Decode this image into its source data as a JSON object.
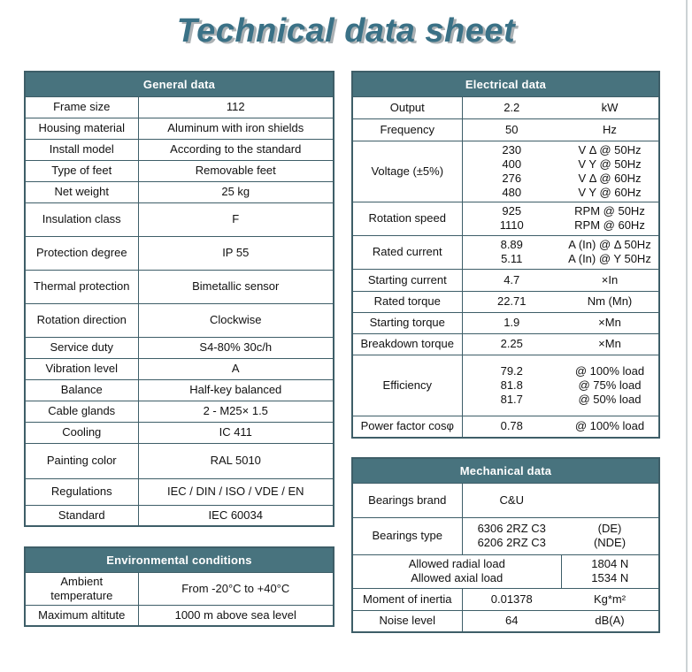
{
  "page": {
    "title": "Technical data sheet"
  },
  "colors": {
    "title_text": "#3a7186",
    "header_bg": "#48737e",
    "header_text": "#ffffff",
    "border": "#3e5e68"
  },
  "general": {
    "title": "General data",
    "rows": [
      {
        "label": "Frame size",
        "value": "112"
      },
      {
        "label": "Housing material",
        "value": "Aluminum with iron shields"
      },
      {
        "label": "Install model",
        "value": "According to the standard"
      },
      {
        "label": "Type of feet",
        "value": "Removable feet"
      },
      {
        "label": "Net weight",
        "value": "25 kg"
      },
      {
        "label": "Insulation class",
        "value": "F"
      },
      {
        "label": "Protection degree",
        "value": "IP 55"
      },
      {
        "label": "Thermal protection",
        "value": "Bimetallic sensor"
      },
      {
        "label": "Rotation direction",
        "value": "Clockwise"
      },
      {
        "label": "Service duty",
        "value": "S4-80% 30c/h"
      },
      {
        "label": "Vibration level",
        "value": "A"
      },
      {
        "label": "Balance",
        "value": "Half-key balanced"
      },
      {
        "label": "Cable glands",
        "value": "2 - M25× 1.5"
      },
      {
        "label": "Cooling",
        "value": "IC 411"
      },
      {
        "label": "Painting color",
        "value": "RAL 5010"
      },
      {
        "label": "Regulations",
        "value": "IEC / DIN / ISO / VDE / EN"
      },
      {
        "label": "Standard",
        "value": "IEC 60034"
      }
    ]
  },
  "environmental": {
    "title": "Environmental conditions",
    "rows": [
      {
        "label": "Ambient temperature",
        "value": "From -20°C to +40°C"
      },
      {
        "label": "Maximum altitute",
        "value": "1000 m above sea level"
      }
    ]
  },
  "electrical": {
    "title": "Electrical data",
    "rows": [
      {
        "label": "Output",
        "values": [
          "2.2"
        ],
        "units": [
          "kW"
        ]
      },
      {
        "label": "Frequency",
        "values": [
          "50"
        ],
        "units": [
          "Hz"
        ]
      },
      {
        "label": "Voltage (±5%)",
        "values": [
          "230",
          "400",
          "276",
          "480"
        ],
        "units": [
          "V Δ @ 50Hz",
          "V Y @ 50Hz",
          "V Δ @ 60Hz",
          "V Y @ 60Hz"
        ]
      },
      {
        "label": "Rotation speed",
        "values": [
          "925",
          "1110"
        ],
        "units": [
          "RPM @ 50Hz",
          "RPM @ 60Hz"
        ]
      },
      {
        "label": "Rated current",
        "values": [
          "8.89",
          "5.11"
        ],
        "units": [
          "A (In) @ Δ 50Hz",
          "A (In) @ Y 50Hz"
        ]
      },
      {
        "label": "Starting current",
        "values": [
          "4.7"
        ],
        "units": [
          "×In"
        ]
      },
      {
        "label": "Rated torque",
        "values": [
          "22.71"
        ],
        "units": [
          "Nm (Mn)"
        ]
      },
      {
        "label": "Starting torque",
        "values": [
          "1.9"
        ],
        "units": [
          "×Mn"
        ]
      },
      {
        "label": "Breakdown torque",
        "values": [
          "2.25"
        ],
        "units": [
          "×Mn"
        ]
      },
      {
        "label": "Efficiency",
        "values": [
          "79.2",
          "81.8",
          "81.7"
        ],
        "units": [
          "@ 100% load",
          "@ 75% load",
          "@ 50% load"
        ]
      },
      {
        "label": "Power factor cosφ",
        "values": [
          "0.78"
        ],
        "units": [
          "@ 100% load"
        ]
      }
    ]
  },
  "mechanical": {
    "title": "Mechanical data",
    "rows": [
      {
        "type": "normal",
        "label": "Bearings brand",
        "values": [
          "C&U"
        ],
        "units": []
      },
      {
        "type": "normal",
        "label": "Bearings type",
        "values": [
          "6306 2RZ C3",
          "6206 2RZ C3"
        ],
        "units": [
          "(DE)",
          "(NDE)"
        ]
      },
      {
        "type": "span",
        "labels": [
          "Allowed radial load",
          "Allowed axial load"
        ],
        "units": [
          "1804 N",
          "1534 N"
        ]
      },
      {
        "type": "normal",
        "label": "Moment of inertia",
        "values": [
          "0.01378"
        ],
        "units": [
          "Kg*m²"
        ]
      },
      {
        "type": "normal",
        "label": "Noise level",
        "values": [
          "64"
        ],
        "units": [
          "dB(A)"
        ]
      }
    ]
  }
}
